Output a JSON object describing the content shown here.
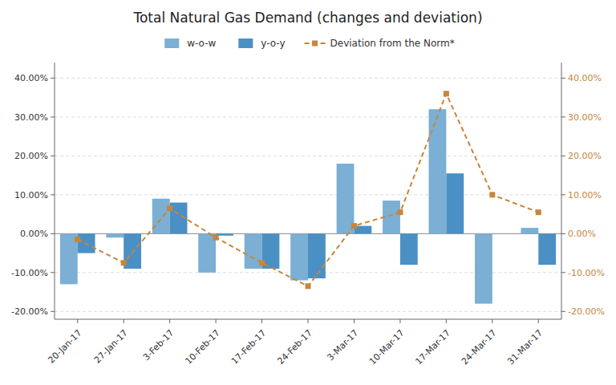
{
  "chart_data": {
    "type": "bar",
    "title": "Total Natural Gas Demand (changes and deviation)",
    "categories": [
      "20-Jan-17",
      "27-Jan-17",
      "3-Feb-17",
      "10-Feb-17",
      "17-Feb-17",
      "24-Feb-17",
      "3-Mar-17",
      "10-Mar-17",
      "17-Mar-17",
      "24-Mar-17",
      "31-Mar-17"
    ],
    "series": [
      {
        "name": "w-o-w",
        "type": "bar",
        "color": "#7bafd4",
        "values": [
          -0.13,
          -0.01,
          0.09,
          -0.1,
          -0.09,
          -0.12,
          0.18,
          0.085,
          0.32,
          -0.18,
          0.015
        ]
      },
      {
        "name": "y-o-y",
        "type": "bar",
        "color": "#4a90c4",
        "values": [
          -0.05,
          -0.09,
          0.08,
          -0.005,
          -0.09,
          -0.115,
          0.02,
          -0.08,
          0.155,
          0.0,
          -0.08
        ]
      },
      {
        "name": "Deviation from the Norm*",
        "type": "line",
        "color": "#c8853a",
        "marker": "square",
        "line_style": "dashed",
        "axis": "y2",
        "values": [
          -0.015,
          -0.075,
          0.065,
          -0.01,
          -0.075,
          -0.135,
          0.02,
          0.055,
          0.36,
          0.1,
          0.055
        ]
      }
    ],
    "ylim": [
      -0.22,
      0.44
    ],
    "yticks": [
      {
        "value": -0.2,
        "label": "-20.00%"
      },
      {
        "value": -0.1,
        "label": "-10.00%"
      },
      {
        "value": 0.0,
        "label": "0.00%"
      },
      {
        "value": 0.1,
        "label": "10.00%"
      },
      {
        "value": 0.2,
        "label": "20.00%"
      },
      {
        "value": 0.3,
        "label": "30.00%"
      },
      {
        "value": 0.4,
        "label": "40.00%"
      }
    ],
    "y2lim": [
      -0.22,
      0.44
    ],
    "y2ticks": [
      {
        "value": -0.2,
        "label": "-20.00%"
      },
      {
        "value": -0.1,
        "label": "-10.00%"
      },
      {
        "value": 0.0,
        "label": "0.00%"
      },
      {
        "value": 0.1,
        "label": "10.00%"
      },
      {
        "value": 0.2,
        "label": "20.00%"
      },
      {
        "value": 0.3,
        "label": "30.00%"
      },
      {
        "value": 0.4,
        "label": "40.00%"
      }
    ],
    "grid": true,
    "legend": "top"
  }
}
